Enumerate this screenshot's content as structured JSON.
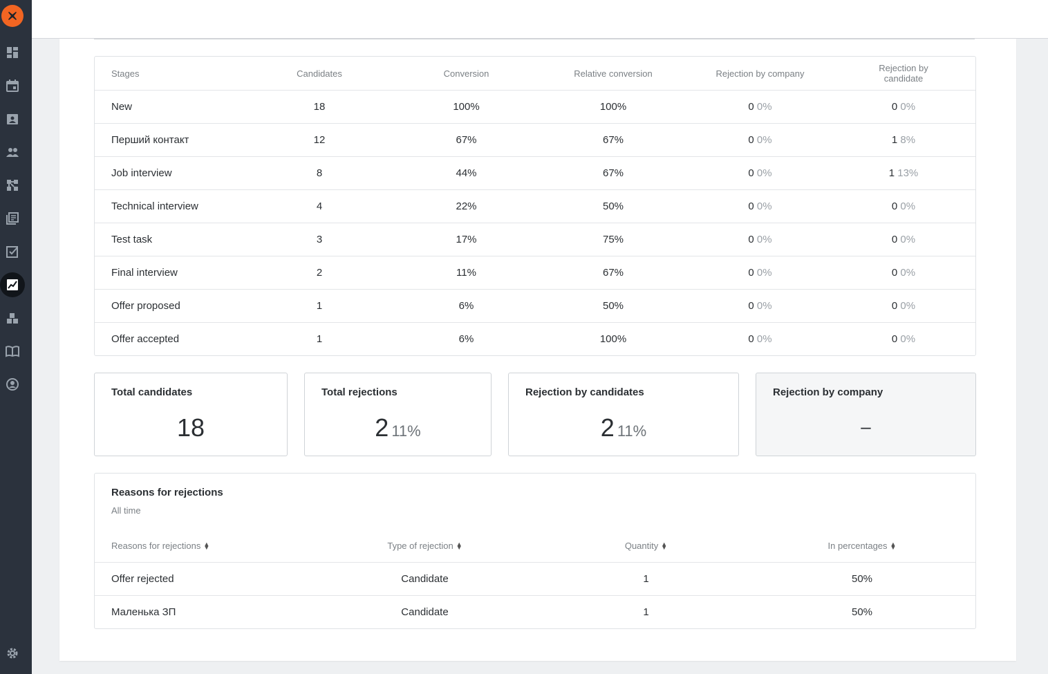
{
  "sidebar": {
    "icons": [
      "dashboard-icon",
      "calendar-icon",
      "contacts-icon",
      "people-icon",
      "workflow-icon",
      "library-icon",
      "tasks-icon",
      "analytics-icon",
      "integrations-icon",
      "book-icon",
      "account-icon",
      "settings-icon"
    ],
    "active": "analytics-icon",
    "accent": "#f26522"
  },
  "stages_table": {
    "headers": [
      "Stages",
      "Candidates",
      "Conversion",
      "Relative conversion",
      "Rejection by company",
      "Rejection by candidate"
    ],
    "rows": [
      {
        "stage": "New",
        "candidates": "18",
        "conversion": "100%",
        "relative": "100%",
        "rej_company": "0",
        "rej_company_pct": "0%",
        "rej_candidate": "0",
        "rej_candidate_pct": "0%"
      },
      {
        "stage": "Перший контакт",
        "candidates": "12",
        "conversion": "67%",
        "relative": "67%",
        "rej_company": "0",
        "rej_company_pct": "0%",
        "rej_candidate": "1",
        "rej_candidate_pct": "8%"
      },
      {
        "stage": "Job interview",
        "candidates": "8",
        "conversion": "44%",
        "relative": "67%",
        "rej_company": "0",
        "rej_company_pct": "0%",
        "rej_candidate": "1",
        "rej_candidate_pct": "13%"
      },
      {
        "stage": "Technical interview",
        "candidates": "4",
        "conversion": "22%",
        "relative": "50%",
        "rej_company": "0",
        "rej_company_pct": "0%",
        "rej_candidate": "0",
        "rej_candidate_pct": "0%"
      },
      {
        "stage": "Test task",
        "candidates": "3",
        "conversion": "17%",
        "relative": "75%",
        "rej_company": "0",
        "rej_company_pct": "0%",
        "rej_candidate": "0",
        "rej_candidate_pct": "0%"
      },
      {
        "stage": "Final interview",
        "candidates": "2",
        "conversion": "11%",
        "relative": "67%",
        "rej_company": "0",
        "rej_company_pct": "0%",
        "rej_candidate": "0",
        "rej_candidate_pct": "0%"
      },
      {
        "stage": "Offer proposed",
        "candidates": "1",
        "conversion": "6%",
        "relative": "50%",
        "rej_company": "0",
        "rej_company_pct": "0%",
        "rej_candidate": "0",
        "rej_candidate_pct": "0%"
      },
      {
        "stage": "Offer accepted",
        "candidates": "1",
        "conversion": "6%",
        "relative": "100%",
        "rej_company": "0",
        "rej_company_pct": "0%",
        "rej_candidate": "0",
        "rej_candidate_pct": "0%"
      }
    ]
  },
  "cards": {
    "total_candidates": {
      "title": "Total candidates",
      "value": "18"
    },
    "total_rejections": {
      "title": "Total rejections",
      "value": "2",
      "pct": "11%"
    },
    "rejection_by_candidates": {
      "title": "Rejection by candidates",
      "value": "2",
      "pct": "11%"
    },
    "rejection_by_company": {
      "title": "Rejection by company",
      "value": "–"
    }
  },
  "reasons": {
    "title": "Reasons for rejections",
    "period": "All time",
    "headers": [
      "Reasons for rejections",
      "Type of rejection",
      "Quantity",
      "In percentages"
    ],
    "rows": [
      {
        "reason": "Offer rejected",
        "type": "Candidate",
        "quantity": "1",
        "percent": "50%"
      },
      {
        "reason": "Маленька ЗП",
        "type": "Candidate",
        "quantity": "1",
        "percent": "50%"
      }
    ]
  }
}
